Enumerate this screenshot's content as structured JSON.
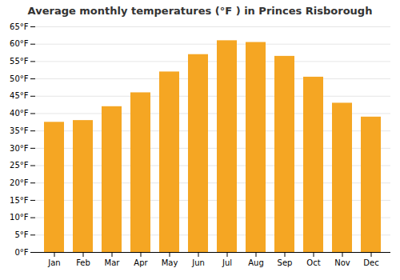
{
  "chart_data": {
    "type": "bar",
    "title": "Average monthly temperatures (°F ) in Princes Risborough",
    "categories": [
      "Jan",
      "Feb",
      "Mar",
      "Apr",
      "May",
      "Jun",
      "Jul",
      "Aug",
      "Sep",
      "Oct",
      "Nov",
      "Dec"
    ],
    "values": [
      37.5,
      38.0,
      42.0,
      46.0,
      52.0,
      57.0,
      61.0,
      60.5,
      56.5,
      50.5,
      43.0,
      39.0
    ],
    "color": "#F5A623",
    "ylim": [
      0,
      65
    ],
    "yticks": [
      {
        "value": 0,
        "label": "0°F"
      },
      {
        "value": 5,
        "label": "5°F"
      },
      {
        "value": 10,
        "label": "10°F"
      },
      {
        "value": 15,
        "label": "15°F"
      },
      {
        "value": 20,
        "label": "20°F"
      },
      {
        "value": 25,
        "label": "25°F"
      },
      {
        "value": 30,
        "label": "30°F"
      },
      {
        "value": 35,
        "label": "35°F"
      },
      {
        "value": 40,
        "label": "40°F"
      },
      {
        "value": 45,
        "label": "45°F"
      },
      {
        "value": 50,
        "label": "50°F"
      },
      {
        "value": 55,
        "label": "55°F"
      },
      {
        "value": 60,
        "label": "60°F"
      },
      {
        "value": 65,
        "label": "65°F"
      }
    ],
    "grid": true
  }
}
